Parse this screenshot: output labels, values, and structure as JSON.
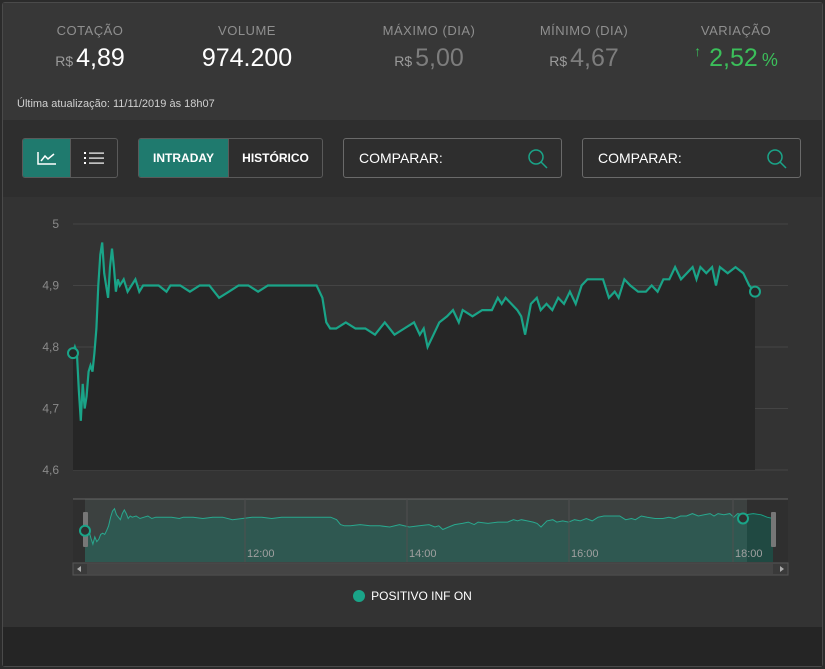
{
  "quote": {
    "cotacao": {
      "label": "COTAÇÃO",
      "currency": "R$",
      "value": "4,89"
    },
    "volume": {
      "label": "VOLUME",
      "value": "974.200"
    },
    "maximo": {
      "label": "MÁXIMO (DIA)",
      "currency": "R$",
      "value": "5,00"
    },
    "minimo": {
      "label": "MÍNIMO (DIA)",
      "currency": "R$",
      "value": "4,67"
    },
    "variacao": {
      "label": "VARIAÇÃO",
      "arrow": "↑",
      "value": "2,52",
      "unit": "%"
    }
  },
  "last_update": "Última atualização: 11/11/2019 às 18h07",
  "toolbar": {
    "intraday_label": "INTRADAY",
    "historico_label": "HISTÓRICO",
    "compare1_label": "COMPARAR:",
    "compare2_label": "COMPARAR:"
  },
  "colors": {
    "accent": "#1aa488",
    "positive": "#3bbf5a",
    "active_button": "#1f7a6e"
  },
  "icons": [
    "chart-icon",
    "list-icon",
    "search-icon"
  ],
  "legend_label": "POSITIVO INF ON",
  "chart_data": {
    "type": "line",
    "series": [
      {
        "name": "POSITIVO INF ON",
        "values": [
          [
            0,
            4.79
          ],
          [
            1,
            4.8
          ],
          [
            2,
            4.79
          ],
          [
            3,
            4.73
          ],
          [
            4,
            4.68
          ],
          [
            5,
            4.74
          ],
          [
            6,
            4.7
          ],
          [
            7,
            4.72
          ],
          [
            8,
            4.76
          ],
          [
            9,
            4.77
          ],
          [
            10,
            4.76
          ],
          [
            11,
            4.79
          ],
          [
            12,
            4.83
          ],
          [
            13,
            4.9
          ],
          [
            14,
            4.95
          ],
          [
            15,
            4.97
          ],
          [
            16,
            4.92
          ],
          [
            17,
            4.9
          ],
          [
            18,
            4.88
          ],
          [
            19,
            4.93
          ],
          [
            20,
            4.96
          ],
          [
            21,
            4.93
          ],
          [
            22,
            4.89
          ],
          [
            23,
            4.91
          ],
          [
            24,
            4.9
          ],
          [
            26,
            4.91
          ],
          [
            28,
            4.89
          ],
          [
            30,
            4.9
          ],
          [
            32,
            4.91
          ],
          [
            34,
            4.89
          ],
          [
            36,
            4.9
          ],
          [
            40,
            4.9
          ],
          [
            44,
            4.9
          ],
          [
            48,
            4.89
          ],
          [
            50,
            4.9
          ],
          [
            55,
            4.9
          ],
          [
            60,
            4.89
          ],
          [
            65,
            4.9
          ],
          [
            70,
            4.9
          ],
          [
            75,
            4.88
          ],
          [
            80,
            4.89
          ],
          [
            85,
            4.9
          ],
          [
            90,
            4.9
          ],
          [
            95,
            4.89
          ],
          [
            100,
            4.9
          ],
          [
            110,
            4.9
          ],
          [
            115,
            4.9
          ],
          [
            120,
            4.9
          ],
          [
            125,
            4.9
          ],
          [
            128,
            4.88
          ],
          [
            130,
            4.84
          ],
          [
            132,
            4.83
          ],
          [
            135,
            4.83
          ],
          [
            140,
            4.84
          ],
          [
            145,
            4.83
          ],
          [
            150,
            4.83
          ],
          [
            155,
            4.82
          ],
          [
            160,
            4.84
          ],
          [
            165,
            4.82
          ],
          [
            170,
            4.83
          ],
          [
            175,
            4.84
          ],
          [
            178,
            4.82
          ],
          [
            180,
            4.83
          ],
          [
            182,
            4.8
          ],
          [
            185,
            4.82
          ],
          [
            188,
            4.84
          ],
          [
            192,
            4.85
          ],
          [
            195,
            4.86
          ],
          [
            198,
            4.84
          ],
          [
            200,
            4.86
          ],
          [
            205,
            4.85
          ],
          [
            210,
            4.86
          ],
          [
            215,
            4.86
          ],
          [
            218,
            4.88
          ],
          [
            220,
            4.87
          ],
          [
            222,
            4.88
          ],
          [
            225,
            4.87
          ],
          [
            228,
            4.86
          ],
          [
            230,
            4.85
          ],
          [
            232,
            4.82
          ],
          [
            235,
            4.87
          ],
          [
            238,
            4.88
          ],
          [
            240,
            4.86
          ],
          [
            243,
            4.87
          ],
          [
            246,
            4.86
          ],
          [
            249,
            4.88
          ],
          [
            252,
            4.87
          ],
          [
            255,
            4.89
          ],
          [
            258,
            4.87
          ],
          [
            261,
            4.9
          ],
          [
            264,
            4.91
          ],
          [
            267,
            4.91
          ],
          [
            270,
            4.91
          ],
          [
            272,
            4.91
          ],
          [
            275,
            4.88
          ],
          [
            278,
            4.89
          ],
          [
            280,
            4.88
          ],
          [
            283,
            4.91
          ],
          [
            286,
            4.9
          ],
          [
            290,
            4.89
          ],
          [
            294,
            4.89
          ],
          [
            297,
            4.9
          ],
          [
            300,
            4.89
          ],
          [
            303,
            4.91
          ],
          [
            306,
            4.91
          ],
          [
            309,
            4.93
          ],
          [
            312,
            4.91
          ],
          [
            315,
            4.92
          ],
          [
            318,
            4.93
          ],
          [
            320,
            4.91
          ],
          [
            322,
            4.93
          ],
          [
            325,
            4.92
          ],
          [
            328,
            4.93
          ],
          [
            330,
            4.9
          ],
          [
            332,
            4.93
          ],
          [
            336,
            4.92
          ],
          [
            340,
            4.93
          ],
          [
            344,
            4.92
          ],
          [
            347,
            4.9
          ],
          [
            350,
            4.89
          ]
        ]
      }
    ],
    "ylim": [
      4.6,
      5.0
    ],
    "yticks": [
      "4,6",
      "4,7",
      "4,8",
      "4,9",
      "5"
    ],
    "xticks": [
      "12:00",
      "14:00",
      "16:00",
      "18:00"
    ],
    "grid": true,
    "legend": "bottom-center"
  }
}
